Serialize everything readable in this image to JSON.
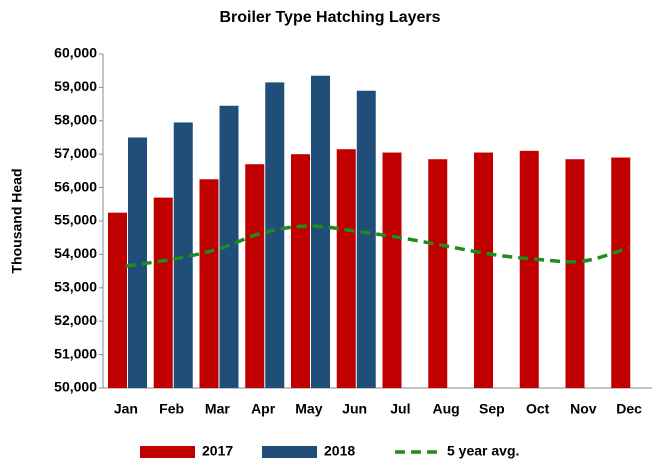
{
  "chart_data": {
    "type": "bar_line",
    "title": "Broiler Type Hatching Layers",
    "y_label": "Thousand Head",
    "categories": [
      "Jan",
      "Feb",
      "Mar",
      "Apr",
      "May",
      "Jun",
      "Jul",
      "Aug",
      "Sep",
      "Oct",
      "Nov",
      "Dec"
    ],
    "series": [
      {
        "name": "2017",
        "color": "#c00000",
        "kind": "bar",
        "values": [
          55250,
          55700,
          56250,
          56700,
          57000,
          57150,
          57050,
          56850,
          57050,
          57100,
          56850,
          56900
        ]
      },
      {
        "name": "2018",
        "color": "#1f4e79",
        "kind": "bar",
        "values": [
          57500,
          57950,
          58450,
          59150,
          59350,
          58900,
          null,
          null,
          null,
          null,
          null,
          null
        ]
      },
      {
        "name": "5 year avg.",
        "color": "#1e8c1e",
        "kind": "line",
        "dashed": true,
        "values": [
          53650,
          53850,
          54150,
          54650,
          54850,
          54700,
          54500,
          54250,
          54000,
          53850,
          53800,
          54200
        ]
      }
    ],
    "ylim": [
      50000,
      60000
    ],
    "yticks": [
      {
        "value": 50000,
        "label": "50,000"
      },
      {
        "value": 51000,
        "label": "51,000"
      },
      {
        "value": 52000,
        "label": "52,000"
      },
      {
        "value": 53000,
        "label": "53,000"
      },
      {
        "value": 54000,
        "label": "54,000"
      },
      {
        "value": 55000,
        "label": "55,000"
      },
      {
        "value": 56000,
        "label": "56,000"
      },
      {
        "value": 57000,
        "label": "57,000"
      },
      {
        "value": 58000,
        "label": "58,000"
      },
      {
        "value": 59000,
        "label": "59,000"
      },
      {
        "value": 60000,
        "label": "60,000"
      }
    ],
    "grid": false
  }
}
